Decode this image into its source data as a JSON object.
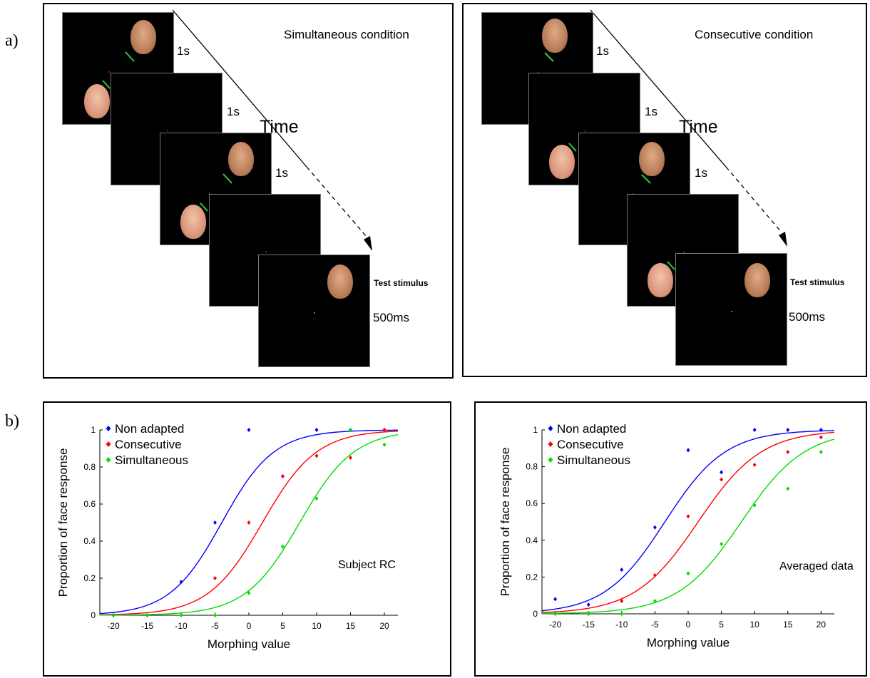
{
  "panel_labels": {
    "a": "a)",
    "b": "b)"
  },
  "panel_a": {
    "left": {
      "condition": "Simultaneous condition",
      "time_label": "Time",
      "durations": [
        "1s",
        "1s",
        "1s"
      ],
      "test_label": "Test stimulus",
      "test_duration": "500ms"
    },
    "right": {
      "condition": "Consecutive condition",
      "time_label": "Time",
      "durations": [
        "1s",
        "1s",
        "1s"
      ],
      "test_label": "Test stimulus",
      "test_duration": "500ms"
    }
  },
  "colors": {
    "non_adapted": "#0000ff",
    "consecutive": "#ff0000",
    "simultaneous": "#00dd00",
    "arrow": "#33cc33"
  },
  "chart_data": [
    {
      "type": "scatter",
      "xlabel": "Morphing value",
      "ylabel": "Proportion of face response",
      "annotation": "Subject RC",
      "xlim": [
        -22,
        22
      ],
      "ylim": [
        0,
        1
      ],
      "xticks": [
        -20,
        -15,
        -10,
        -5,
        0,
        5,
        10,
        15,
        20
      ],
      "yticks": [
        0,
        0.2,
        0.4,
        0.6,
        0.8,
        1
      ],
      "ytick_labels": [
        "0",
        "0.2",
        "0.4",
        "0.6",
        "0.8",
        "1"
      ],
      "legend_position": "top-left",
      "x": [
        -20,
        -15,
        -10,
        -5,
        0,
        5,
        10,
        15,
        20
      ],
      "series": [
        {
          "name": "Non adapted",
          "values": [
            0,
            0,
            0.18,
            0.5,
            1,
            0.75,
            1,
            1,
            1
          ],
          "fit": {
            "mid": -4,
            "slope": 0.26
          }
        },
        {
          "name": "Consecutive",
          "values": [
            0,
            0,
            0,
            0.2,
            0.5,
            0.75,
            0.86,
            0.85,
            1
          ],
          "fit": {
            "mid": 2,
            "slope": 0.25
          }
        },
        {
          "name": "Simultaneous",
          "values": [
            0,
            0,
            0,
            0,
            0.12,
            0.37,
            0.63,
            1,
            0.92
          ],
          "fit": {
            "mid": 7.5,
            "slope": 0.25
          }
        }
      ]
    },
    {
      "type": "scatter",
      "xlabel": "Morphing value",
      "ylabel": "Proportion of face response",
      "annotation": "Averaged data",
      "xlim": [
        -22,
        22
      ],
      "ylim": [
        0,
        1
      ],
      "xticks": [
        -20,
        -15,
        -10,
        -5,
        0,
        5,
        10,
        15,
        20
      ],
      "yticks": [
        0,
        0.2,
        0.4,
        0.6,
        0.8,
        1
      ],
      "ytick_labels": [
        "0",
        "0.2",
        "0.4",
        "0.6",
        "0.8",
        "1"
      ],
      "legend_position": "top-left",
      "x": [
        -20,
        -15,
        -10,
        -5,
        0,
        5,
        10,
        15,
        20
      ],
      "series": [
        {
          "name": "Non adapted",
          "values": [
            0.08,
            0.05,
            0.24,
            0.47,
            0.89,
            0.77,
            1,
            1,
            1
          ],
          "fit": {
            "mid": -3.5,
            "slope": 0.22
          }
        },
        {
          "name": "Consecutive",
          "values": [
            0,
            0,
            0.07,
            0.21,
            0.53,
            0.73,
            0.81,
            0.88,
            0.96
          ],
          "fit": {
            "mid": 1.5,
            "slope": 0.21
          }
        },
        {
          "name": "Simultaneous",
          "values": [
            0,
            0,
            0,
            0.07,
            0.22,
            0.38,
            0.59,
            0.68,
            0.88
          ],
          "fit": {
            "mid": 8,
            "slope": 0.21
          }
        }
      ]
    }
  ]
}
